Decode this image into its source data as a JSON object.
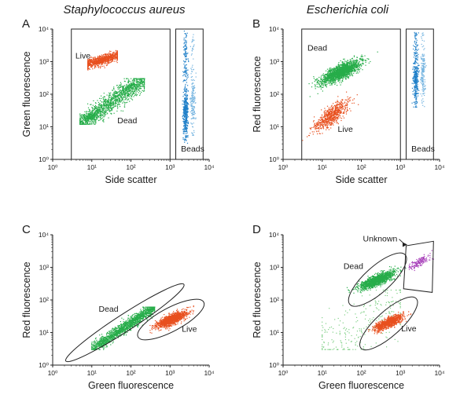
{
  "headers": {
    "left": "Staphylococcus aureus",
    "right": "Escherichia coli"
  },
  "colors": {
    "live": "#e8501f",
    "dead": "#27ad4a",
    "beads": "#1f7fc8",
    "unknown": "#a63db8",
    "axis": "#222222"
  },
  "chart_data": [
    {
      "type": "scatter",
      "panel": "A",
      "xlabel": "Side scatter",
      "ylabel": "Green fluorescence",
      "xscale": "log",
      "yscale": "log",
      "xlim": [
        1,
        10000
      ],
      "ylim": [
        1,
        10000
      ],
      "tick_labels": [
        "10⁰",
        "10¹",
        "10²",
        "10³",
        "10⁴"
      ],
      "series": [
        {
          "name": "Live",
          "color": "#e8501f",
          "shape": "blob",
          "n": 850,
          "x": [
            8,
            45
          ],
          "y": [
            400,
            2500
          ],
          "center": [
            17,
            1100
          ],
          "spread": [
            0.5,
            0.28
          ]
        },
        {
          "name": "Dead",
          "color": "#27ad4a",
          "shape": "band",
          "n": 1300,
          "x": [
            5,
            220
          ],
          "y": [
            12,
            300
          ],
          "width": 0.3
        },
        {
          "name": "Dead",
          "color": "#27ad4a",
          "shape": "blob",
          "n": 250,
          "x": [
            5,
            30
          ],
          "y": [
            12,
            45
          ],
          "center": [
            9,
            20
          ],
          "spread": [
            0.3,
            0.3
          ]
        },
        {
          "name": "Beads",
          "color": "#1f7fc8",
          "shape": "strip",
          "n": 500,
          "x": [
            1900,
            3300
          ],
          "y": [
            3,
            9000
          ],
          "center": [
            2300,
            25
          ]
        },
        {
          "name": "Beads",
          "color": "#74b4e0",
          "shape": "strip",
          "n": 180,
          "x": [
            3200,
            4600
          ],
          "y": [
            5,
            8000
          ],
          "center": [
            3800,
            60
          ]
        }
      ],
      "gates": [
        {
          "shape": "rect",
          "x": [
            3,
            1000
          ],
          "y": [
            1,
            10000
          ]
        },
        {
          "shape": "rect",
          "x": [
            1400,
            7000
          ],
          "y": [
            1,
            10000
          ]
        }
      ],
      "annotations": [
        {
          "text": "Live",
          "x": 3.8,
          "y": 1250
        },
        {
          "text": "Dead",
          "x": 45,
          "y": 13
        },
        {
          "text": "Beads",
          "x": 1900,
          "y": 1.75
        }
      ]
    },
    {
      "type": "scatter",
      "panel": "B",
      "xlabel": "Side scatter",
      "ylabel": "Red fluorescence",
      "xscale": "log",
      "yscale": "log",
      "xlim": [
        1,
        10000
      ],
      "ylim": [
        1,
        10000
      ],
      "tick_labels": [
        "10⁰",
        "10¹",
        "10²",
        "10³",
        "10⁴"
      ],
      "series": [
        {
          "name": "Dead",
          "color": "#27ad4a",
          "shape": "blob",
          "n": 1700,
          "x": [
            3,
            400
          ],
          "y": [
            60,
            3500
          ],
          "center": [
            30,
            480
          ],
          "spread": [
            0.45,
            0.42
          ]
        },
        {
          "name": "Live",
          "color": "#e8501f",
          "shape": "blob",
          "n": 650,
          "x": [
            3,
            200
          ],
          "y": [
            2,
            200
          ],
          "center": [
            17,
            22
          ],
          "spread": [
            0.4,
            0.55
          ]
        },
        {
          "name": "Beads",
          "color": "#1f7fc8",
          "shape": "strip",
          "n": 380,
          "x": [
            1900,
            3200
          ],
          "y": [
            40,
            8000
          ],
          "center": [
            2400,
            300
          ]
        },
        {
          "name": "Beads",
          "color": "#74b4e0",
          "shape": "strip",
          "n": 180,
          "x": [
            3000,
            4800
          ],
          "y": [
            40,
            8000
          ],
          "center": [
            3700,
            500
          ]
        }
      ],
      "gates": [
        {
          "shape": "rect",
          "x": [
            3,
            1000
          ],
          "y": [
            1,
            10000
          ]
        },
        {
          "shape": "rect",
          "x": [
            1400,
            7000
          ],
          "y": [
            1,
            10000
          ]
        }
      ],
      "annotations": [
        {
          "text": "Dead",
          "x": 4.2,
          "y": 2200
        },
        {
          "text": "Live",
          "x": 25,
          "y": 7
        },
        {
          "text": "Beads",
          "x": 1900,
          "y": 1.75
        }
      ]
    },
    {
      "type": "scatter",
      "panel": "C",
      "xlabel": "Green fluorescence",
      "ylabel": "Red fluorescence",
      "xscale": "log",
      "yscale": "log",
      "xlim": [
        1,
        10000
      ],
      "ylim": [
        1,
        10000
      ],
      "tick_labels": [
        "10⁰",
        "10¹",
        "10²",
        "10³",
        "10⁴"
      ],
      "series": [
        {
          "name": "Dead",
          "color": "#27ad4a",
          "shape": "band",
          "n": 1600,
          "x": [
            10,
            400
          ],
          "y": [
            3,
            60
          ],
          "width": 0.18
        },
        {
          "name": "Live",
          "color": "#e8501f",
          "shape": "blob",
          "n": 1200,
          "x": [
            200,
            4000
          ],
          "y": [
            6,
            80
          ],
          "center": [
            1100,
            25
          ],
          "spread": [
            0.35,
            0.28
          ]
        }
      ],
      "gates": [
        {
          "shape": "ellipse",
          "center": [
            70,
            20
          ],
          "axes_decades": [
            1.8,
            0.26
          ],
          "angle_deg": 33
        },
        {
          "shape": "ellipse",
          "center": [
            1050,
            25
          ],
          "axes_decades": [
            0.95,
            0.36
          ],
          "angle_deg": 28
        }
      ],
      "annotations": [
        {
          "text": "Dead",
          "x": 15,
          "y": 44
        },
        {
          "text": "Live",
          "x": 2000,
          "y": 10.5
        }
      ]
    },
    {
      "type": "scatter",
      "panel": "D",
      "xlabel": "Green fluorescence",
      "ylabel": "Red fluorescence",
      "xscale": "log",
      "yscale": "log",
      "xlim": [
        1,
        10000
      ],
      "ylim": [
        1,
        10000
      ],
      "tick_labels": [
        "10⁰",
        "10¹",
        "10²",
        "10³",
        "10⁴"
      ],
      "series": [
        {
          "name": "Dead",
          "color": "#27ad4a",
          "shape": "blob",
          "n": 1500,
          "x": [
            40,
            1500
          ],
          "y": [
            60,
            2500
          ],
          "center": [
            250,
            400
          ],
          "spread": [
            0.38,
            0.3
          ]
        },
        {
          "name": "Dead",
          "color": "#7fcf86",
          "shape": "scatter",
          "n": 260,
          "x": [
            10,
            1000
          ],
          "y": [
            3,
            200
          ]
        },
        {
          "name": "Live",
          "color": "#e8501f",
          "shape": "blob",
          "n": 900,
          "x": [
            100,
            2500
          ],
          "y": [
            4,
            80
          ],
          "center": [
            500,
            20
          ],
          "spread": [
            0.33,
            0.28
          ]
        },
        {
          "name": "Unknown",
          "color": "#a63db8",
          "shape": "blob",
          "n": 150,
          "x": [
            1100,
            7000
          ],
          "y": [
            300,
            4500
          ],
          "center": [
            3000,
            1400
          ],
          "spread": [
            0.25,
            0.25
          ]
        }
      ],
      "gates": [
        {
          "shape": "ellipse",
          "center": [
            260,
            420
          ],
          "axes_decades": [
            0.95,
            0.4
          ],
          "angle_deg": 42
        },
        {
          "shape": "ellipse",
          "center": [
            500,
            19
          ],
          "axes_decades": [
            0.95,
            0.38
          ],
          "angle_deg": 42
        },
        {
          "shape": "polygon",
          "points": [
            [
              1200,
              220
            ],
            [
              1400,
              4600
            ],
            [
              7000,
              6300
            ],
            [
              6500,
              170
            ]
          ]
        }
      ],
      "annotations": [
        {
          "text": "Unknown",
          "x": 110,
          "y": 6200
        },
        {
          "text": "Dead",
          "x": 35,
          "y": 900
        },
        {
          "text": "Live",
          "x": 1050,
          "y": 11
        }
      ]
    }
  ]
}
